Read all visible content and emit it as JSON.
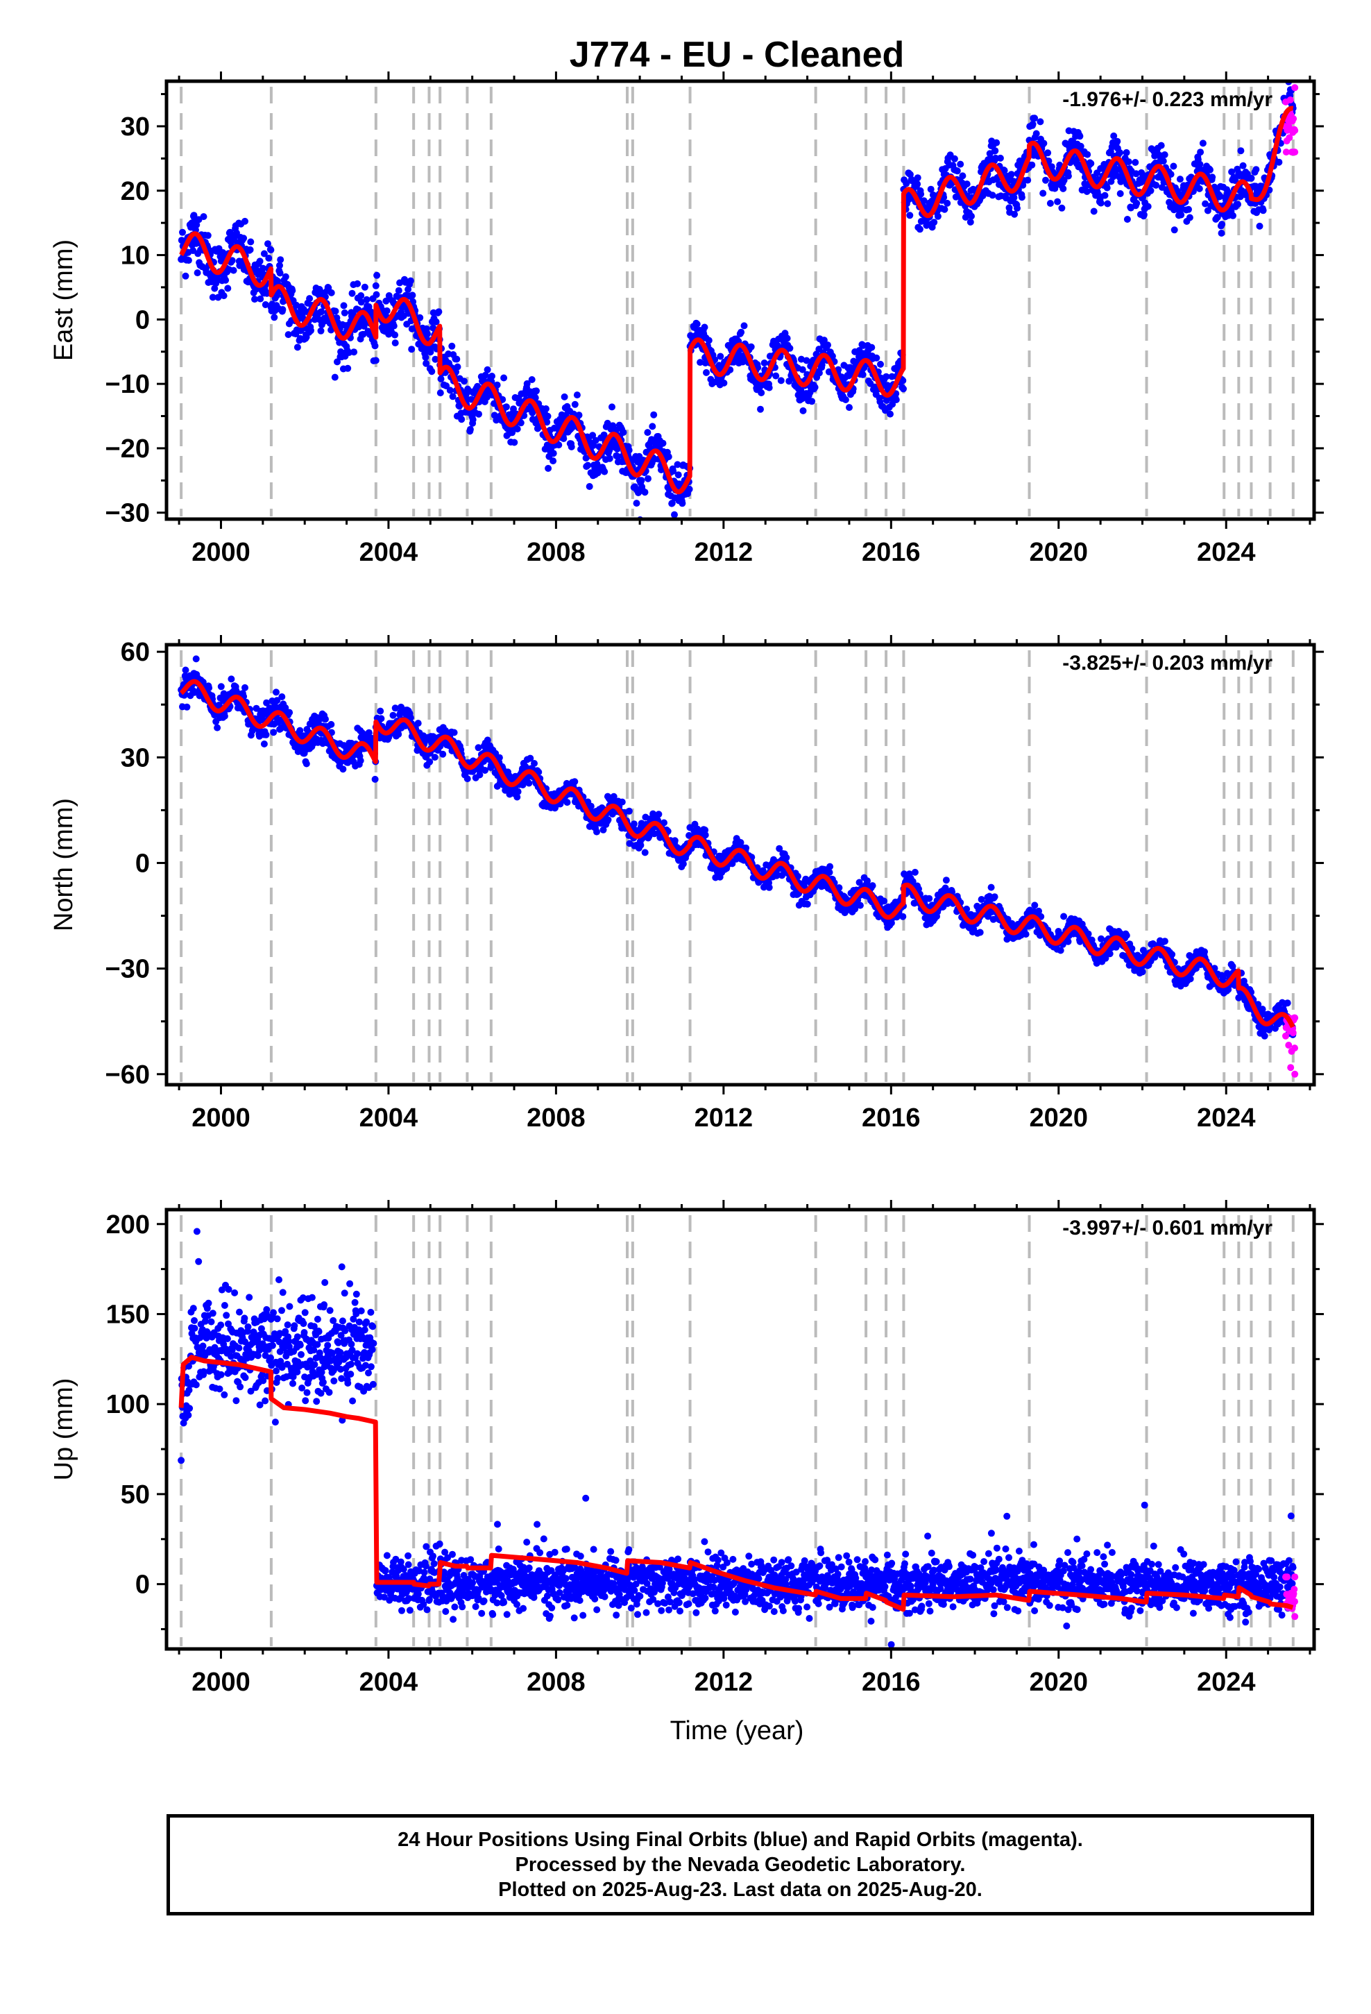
{
  "title": "J774  - EU - Cleaned",
  "xlabel": "Time (year)",
  "colors": {
    "final_orbits": "#0000ff",
    "rapid_orbits": "#ff00ff",
    "model": "#ff0000",
    "equipment_change": "#bbbbbb"
  },
  "chart_data": [
    {
      "type": "scatter",
      "name": "east",
      "ylabel": "East (mm)",
      "rate": "-1.976+/- 0.223 mm/yr",
      "xlim": [
        1998.7,
        2026.1
      ],
      "ylim": [
        -31,
        37
      ],
      "xticks": [
        2000,
        2004,
        2008,
        2012,
        2016,
        2020,
        2024
      ],
      "yticks": [
        -30,
        -20,
        -10,
        0,
        10,
        20,
        30
      ],
      "ytick_labels": [
        "−30",
        "−20",
        "−10",
        "0",
        "10",
        "20",
        "30"
      ],
      "grid": false,
      "offset_lines": [
        1999.05,
        2001.2,
        2003.7,
        2004.6,
        2004.97,
        2005.23,
        2005.88,
        2006.45,
        2009.7,
        2009.83,
        2011.2,
        2014.2,
        2015.4,
        2015.88,
        2016.3,
        2019.3,
        2022.1,
        2023.95,
        2024.3,
        2024.6,
        2025.05,
        2025.6
      ],
      "segments": [
        {
          "start": 1999.05,
          "end": 2001.2,
          "offset": 11.5,
          "slope": -2.0,
          "noise": 2.5
        },
        {
          "start": 2001.2,
          "end": 2003.7,
          "offset": 3.0,
          "slope": -2.0,
          "noise": 2.5
        },
        {
          "start": 2003.7,
          "end": 2004.97,
          "offset": 3.0,
          "slope": -3.5,
          "noise": 2.0
        },
        {
          "start": 2004.97,
          "end": 2005.23,
          "offset": -1.5,
          "slope": -2.5,
          "noise": 2.0
        },
        {
          "start": 2005.23,
          "end": 2011.2,
          "offset": -9.5,
          "slope": -2.6,
          "noise": 2.0
        },
        {
          "start": 2011.2,
          "end": 2016.3,
          "offset": -5.5,
          "slope": -0.8,
          "noise": 1.8
        },
        {
          "start": 2016.3,
          "end": 2019.3,
          "offset": 17.5,
          "slope": 1.9,
          "noise": 2.0
        },
        {
          "start": 2019.3,
          "end": 2024.6,
          "offset": 25.0,
          "slope": -1.2,
          "noise": 2.0
        },
        {
          "start": 2024.6,
          "end": 2025.6,
          "offset": 18.0,
          "slope": 14.0,
          "noise": 2.0
        }
      ],
      "seasonal_amplitude": 2.5,
      "rapid_points": {
        "start": 2025.4,
        "end": 2025.64,
        "center": 31.0,
        "spread": 2.5,
        "lo": 26.0,
        "hi": 36.0
      }
    },
    {
      "type": "scatter",
      "name": "north",
      "ylabel": "North (mm)",
      "rate": "-3.825+/- 0.203 mm/yr",
      "xlim": [
        1998.7,
        2026.1
      ],
      "ylim": [
        -63,
        62
      ],
      "xticks": [
        2000,
        2004,
        2008,
        2012,
        2016,
        2020,
        2024
      ],
      "yticks": [
        -60,
        -30,
        0,
        30,
        60
      ],
      "ytick_labels": [
        "−60",
        "−30",
        "0",
        "30",
        "60"
      ],
      "grid": false,
      "offset_lines": [
        1999.05,
        2001.2,
        2003.7,
        2004.6,
        2004.97,
        2005.23,
        2005.88,
        2006.45,
        2009.7,
        2009.83,
        2011.2,
        2014.2,
        2015.4,
        2015.88,
        2016.3,
        2019.3,
        2022.1,
        2023.95,
        2024.3,
        2024.6,
        2025.05,
        2025.6
      ],
      "segments": [
        {
          "start": 1999.05,
          "end": 2003.7,
          "offset": 50.0,
          "slope": -4.4,
          "noise": 2.5
        },
        {
          "start": 2003.7,
          "end": 2011.2,
          "offset": 41.0,
          "slope": -4.9,
          "noise": 2.0
        },
        {
          "start": 2011.2,
          "end": 2016.3,
          "offset": 5.0,
          "slope": -3.7,
          "noise": 1.8
        },
        {
          "start": 2016.3,
          "end": 2024.3,
          "offset": -9.0,
          "slope": -3.0,
          "noise": 1.8
        },
        {
          "start": 2024.3,
          "end": 2025.6,
          "offset": -38.0,
          "slope": -7.5,
          "noise": 2.2
        }
      ],
      "seasonal_amplitude": 3.0,
      "rapid_points": {
        "start": 2025.42,
        "end": 2025.64,
        "center": -49.0,
        "spread": 3.0,
        "lo": -60.0,
        "hi": -44.0
      }
    },
    {
      "type": "scatter",
      "name": "up",
      "ylabel": "Up (mm)",
      "rate": "-3.997+/- 0.601 mm/yr",
      "xlim": [
        1998.7,
        2026.1
      ],
      "ylim": [
        -36,
        208
      ],
      "xticks": [
        2000,
        2004,
        2008,
        2012,
        2016,
        2020,
        2024
      ],
      "yticks": [
        0,
        50,
        100,
        150,
        200
      ],
      "ytick_labels": [
        "0",
        "50",
        "100",
        "150",
        "200"
      ],
      "grid": false,
      "offset_lines": [
        1999.05,
        2001.2,
        2003.7,
        2004.6,
        2004.97,
        2005.23,
        2005.88,
        2006.45,
        2009.7,
        2009.83,
        2011.2,
        2014.2,
        2015.4,
        2015.88,
        2016.3,
        2019.3,
        2022.1,
        2023.95,
        2024.3,
        2024.6,
        2025.05,
        2025.6
      ],
      "model_steps": [
        [
          1999.05,
          98
        ],
        [
          1999.1,
          122
        ],
        [
          1999.3,
          126
        ],
        [
          1999.6,
          124
        ],
        [
          2000.0,
          123
        ],
        [
          2000.4,
          122
        ],
        [
          2000.8,
          120
        ],
        [
          2001.19,
          118
        ],
        [
          2001.2,
          103
        ],
        [
          2001.5,
          98
        ],
        [
          2002.0,
          97
        ],
        [
          2002.6,
          95
        ],
        [
          2003.0,
          93
        ],
        [
          2003.3,
          92
        ],
        [
          2003.69,
          90
        ],
        [
          2003.72,
          1
        ],
        [
          2004.6,
          1
        ],
        [
          2004.61,
          0
        ],
        [
          2004.96,
          -1
        ],
        [
          2004.98,
          0
        ],
        [
          2005.2,
          0
        ],
        [
          2005.24,
          12
        ],
        [
          2005.6,
          10
        ],
        [
          2005.87,
          10
        ],
        [
          2005.89,
          9
        ],
        [
          2006.44,
          9
        ],
        [
          2006.46,
          16
        ],
        [
          2007.5,
          14
        ],
        [
          2008.5,
          12
        ],
        [
          2009.2,
          9
        ],
        [
          2009.69,
          6
        ],
        [
          2009.71,
          13
        ],
        [
          2010.5,
          12
        ],
        [
          2011.19,
          9
        ],
        [
          2011.21,
          12
        ],
        [
          2011.8,
          7
        ],
        [
          2012.5,
          2
        ],
        [
          2013.2,
          -2
        ],
        [
          2014.19,
          -6
        ],
        [
          2014.21,
          -4
        ],
        [
          2014.8,
          -8
        ],
        [
          2015.39,
          -8
        ],
        [
          2015.41,
          -5
        ],
        [
          2015.87,
          -9
        ],
        [
          2015.89,
          -10
        ],
        [
          2016.29,
          -14
        ],
        [
          2016.31,
          -6
        ],
        [
          2017.5,
          -7
        ],
        [
          2018.5,
          -6
        ],
        [
          2019.29,
          -9
        ],
        [
          2019.31,
          -4
        ],
        [
          2020.5,
          -6
        ],
        [
          2021.5,
          -8
        ],
        [
          2022.09,
          -10
        ],
        [
          2022.11,
          -5
        ],
        [
          2023.0,
          -6
        ],
        [
          2023.94,
          -8
        ],
        [
          2023.96,
          -6
        ],
        [
          2024.29,
          -7
        ],
        [
          2024.31,
          -2
        ],
        [
          2024.59,
          -6
        ],
        [
          2024.61,
          -7
        ],
        [
          2025.04,
          -10
        ],
        [
          2025.06,
          -11
        ],
        [
          2025.45,
          -12
        ],
        [
          2025.59,
          -13
        ]
      ],
      "scatter_segments": [
        {
          "start": 1999.05,
          "end": 2003.65,
          "center": 130,
          "spread": 14,
          "offsets": [
            [
              1999.05,
              1999.25,
              -28
            ]
          ]
        },
        {
          "start": 2003.72,
          "end": 2025.6,
          "center": 0,
          "spread": 7
        }
      ],
      "rapid_points": {
        "start": 2025.42,
        "end": 2025.64,
        "center": -10.0,
        "spread": 5.0,
        "lo": -18.0,
        "hi": 4.0
      }
    }
  ],
  "footer": {
    "line1": "24 Hour Positions Using Final Orbits (blue) and Rapid Orbits (magenta).",
    "line2": "Processed by the Nevada Geodetic Laboratory.",
    "line3": "Plotted on 2025-Aug-23. Last data on 2025-Aug-20."
  }
}
